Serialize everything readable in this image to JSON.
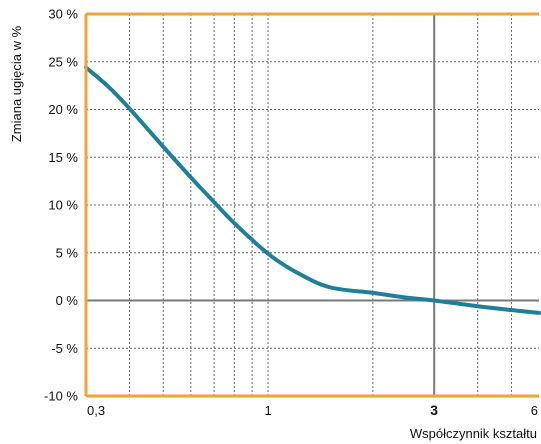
{
  "colors": {
    "frame": "#f2a23a",
    "curve": "#1f7f99",
    "grid_dotted": "#666666",
    "zero_line": "#7a7a7a",
    "reference_line": "#7a7a7a",
    "background": "#ffffff"
  },
  "chart_data": {
    "type": "line",
    "xlabel": "Współczynnik kształtu",
    "ylabel": "Zmiana ugięcia w %",
    "x_scale": "log",
    "xlim": [
      0.3,
      6
    ],
    "ylim": [
      -10,
      30
    ],
    "grid": true,
    "x_ticks": [
      {
        "value": 0.3,
        "label": "0,3",
        "emphasized": false
      },
      {
        "value": 1,
        "label": "1",
        "emphasized": false
      },
      {
        "value": 3,
        "label": "3",
        "emphasized": true
      },
      {
        "value": 6,
        "label": "6",
        "emphasized": false
      }
    ],
    "y_ticks": [
      {
        "value": 30,
        "label": "30 %"
      },
      {
        "value": 25,
        "label": "25 %"
      },
      {
        "value": 20,
        "label": "20 %"
      },
      {
        "value": 15,
        "label": "15 %"
      },
      {
        "value": 10,
        "label": "10 %"
      },
      {
        "value": 5,
        "label": "5 %"
      },
      {
        "value": 0,
        "label": "0 %"
      },
      {
        "value": -5,
        "label": "-5 %"
      },
      {
        "value": -10,
        "label": "-10 %"
      }
    ],
    "minor_x_gridlines": [
      0.4,
      0.5,
      0.6,
      0.7,
      0.8,
      0.9,
      1,
      2,
      3,
      4,
      5,
      6
    ],
    "reference_lines": {
      "vertical_x": 3,
      "horizontal_y": 0
    },
    "series": [
      {
        "x": [
          0.3,
          0.35,
          0.4,
          0.5,
          0.6,
          0.7,
          0.8,
          1.0,
          1.2,
          1.5,
          2.0,
          2.5,
          3.0,
          4.0,
          5.0,
          6.0
        ],
        "y": [
          24.4,
          22.3,
          20.1,
          16.1,
          12.9,
          10.3,
          8.1,
          4.9,
          3.0,
          1.4,
          0.8,
          0.3,
          0.0,
          -0.6,
          -1.0,
          -1.3
        ]
      }
    ]
  }
}
